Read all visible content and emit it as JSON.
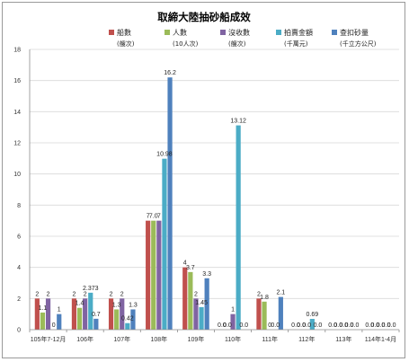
{
  "chart_data": {
    "type": "bar",
    "title": "取締大陸抽砂船成效",
    "categories": [
      "105年7-12月",
      "106年",
      "107年",
      "108年",
      "109年",
      "110年",
      "111年",
      "112年",
      "113年",
      "114年1-4月"
    ],
    "series": [
      {
        "name": "船數",
        "unit": "(艘次)",
        "color": "#c0504d",
        "values": [
          2,
          2,
          2,
          7,
          4,
          0.0,
          2,
          0.0,
          0.0,
          0.0
        ],
        "labels": [
          "2",
          "2",
          "2",
          "7",
          "4",
          "0.0",
          "2",
          "0.0",
          "0.0",
          "0.0"
        ]
      },
      {
        "name": "人數",
        "unit": "(10人次)",
        "color": "#9bbb59",
        "values": [
          1.1,
          1.4,
          1.3,
          7.0,
          3.7,
          0.0,
          1.8,
          0.0,
          0.0,
          0.0
        ],
        "labels": [
          "1.1",
          "1.4",
          "1.3",
          "7.0",
          "3.7",
          "0.0",
          "1.8",
          "0.0",
          "0.0",
          "0.0"
        ]
      },
      {
        "name": "沒收數",
        "unit": "(艘次)",
        "color": "#8064a2",
        "values": [
          2,
          2,
          2,
          7,
          2,
          1,
          0,
          0.0,
          0.0,
          0.0
        ],
        "labels": [
          "2",
          "2",
          "2",
          "7",
          "2",
          "1",
          "0",
          "0.0",
          "0.0",
          "0.0"
        ]
      },
      {
        "name": "拍賣金額",
        "unit": "(千萬元)",
        "color": "#4bacc6",
        "values": [
          0,
          2.373,
          0.42,
          10.98,
          1.45,
          13.12,
          0.0,
          0.69,
          0.0,
          0.0
        ],
        "labels": [
          "0",
          "2.373",
          "0.42",
          "10.98",
          "1.45",
          "13.12",
          "0.0",
          "0.69",
          "0.0",
          "0.0"
        ]
      },
      {
        "name": "查扣砂量",
        "unit": "(千立方公尺)",
        "color": "#4f81bd",
        "values": [
          1,
          0.7,
          1.3,
          16.2,
          3.3,
          0.0,
          2.1,
          0.0,
          0.0,
          0.0
        ],
        "labels": [
          "1",
          "0.7",
          "1.3",
          "16.2",
          "3.3",
          "0.0",
          "2.1",
          "0.0",
          "0.0",
          "0.0"
        ]
      }
    ],
    "ylim": [
      0,
      18
    ],
    "yticks": [
      0,
      2,
      4,
      6,
      8,
      10,
      12,
      14,
      16,
      18
    ],
    "grid": true,
    "legend_position": "top-center"
  }
}
